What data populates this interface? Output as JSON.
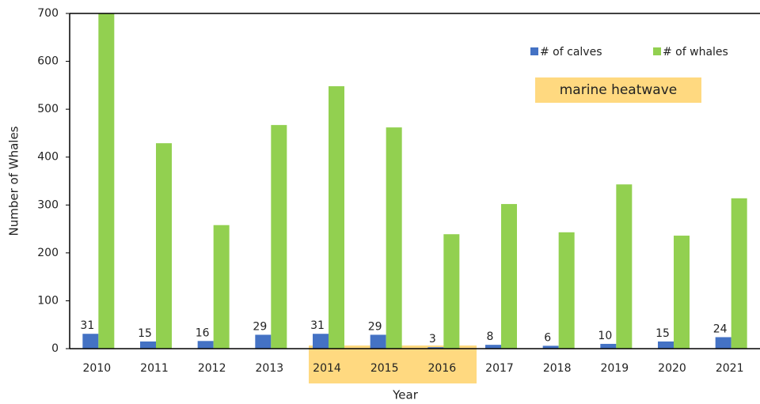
{
  "chart_data": {
    "type": "bar",
    "x_label": "Year",
    "y_label": "Number of Whales",
    "annotation": "marine heatwave",
    "categories": [
      "2010",
      "2011",
      "2012",
      "2013",
      "2014",
      "2015",
      "2016",
      "2017",
      "2018",
      "2019",
      "2020",
      "2021"
    ],
    "series": [
      {
        "name": "# of calves",
        "color": "#4472c4",
        "values": [
          31,
          15,
          16,
          29,
          31,
          29,
          3,
          8,
          6,
          10,
          15,
          24
        ]
      },
      {
        "name": "# of whales",
        "color": "#92d050",
        "values": [
          700,
          429,
          258,
          467,
          548,
          462,
          239,
          302,
          243,
          343,
          236,
          314
        ]
      }
    ],
    "ylim": [
      0,
      700
    ],
    "yticks": [
      0,
      100,
      200,
      300,
      400,
      500,
      600,
      700
    ],
    "grid": false
  }
}
